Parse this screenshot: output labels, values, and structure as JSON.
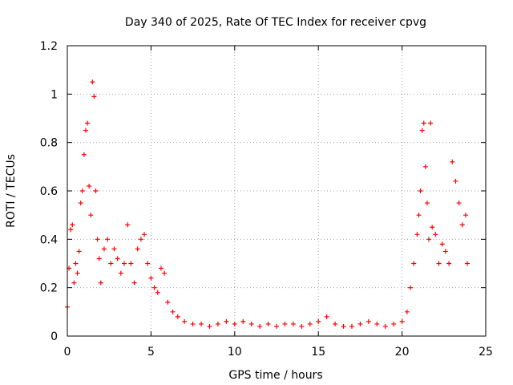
{
  "chart_data": {
    "type": "scatter",
    "title": "Day 340 of 2025, Rate Of TEC Index for receiver cpvg",
    "xlabel": "GPS time / hours",
    "ylabel": "ROTI / TECUs",
    "xlim": [
      0,
      25
    ],
    "ylim": [
      0,
      1.2
    ],
    "xticks": [
      "0",
      "5",
      "10",
      "15",
      "20",
      "25"
    ],
    "yticks": [
      "0",
      "0.2",
      "0.4",
      "0.6",
      "0.8",
      "1",
      "1.2"
    ],
    "grid": true,
    "marker": "+",
    "series": [
      {
        "name": "ROTI",
        "color": "#ff0000",
        "x": [
          0.0,
          0.1,
          0.2,
          0.3,
          0.4,
          0.5,
          0.6,
          0.7,
          0.8,
          0.9,
          1.0,
          1.1,
          1.2,
          1.3,
          1.4,
          1.5,
          1.6,
          1.7,
          1.8,
          1.9,
          2.0,
          2.2,
          2.4,
          2.6,
          2.8,
          3.0,
          3.2,
          3.4,
          3.6,
          3.8,
          4.0,
          4.2,
          4.4,
          4.6,
          4.8,
          5.0,
          5.2,
          5.4,
          5.6,
          5.8,
          6.0,
          6.3,
          6.6,
          7.0,
          7.5,
          8.0,
          8.5,
          9.0,
          9.5,
          10.0,
          10.5,
          11.0,
          11.5,
          12.0,
          12.5,
          13.0,
          13.5,
          14.0,
          14.5,
          15.0,
          15.5,
          16.0,
          16.5,
          17.0,
          17.5,
          18.0,
          18.5,
          19.0,
          19.5,
          20.0,
          20.3,
          20.5,
          20.7,
          20.9,
          21.0,
          21.1,
          21.2,
          21.3,
          21.4,
          21.5,
          21.6,
          21.7,
          21.8,
          22.0,
          22.2,
          22.4,
          22.6,
          22.8,
          23.0,
          23.2,
          23.4,
          23.6,
          23.8,
          23.9
        ],
        "y": [
          0.12,
          0.28,
          0.44,
          0.46,
          0.22,
          0.3,
          0.26,
          0.35,
          0.55,
          0.6,
          0.75,
          0.85,
          0.88,
          0.62,
          0.5,
          1.05,
          0.99,
          0.6,
          0.4,
          0.32,
          0.22,
          0.36,
          0.4,
          0.3,
          0.36,
          0.32,
          0.26,
          0.3,
          0.46,
          0.3,
          0.22,
          0.36,
          0.4,
          0.42,
          0.3,
          0.24,
          0.2,
          0.18,
          0.28,
          0.26,
          0.14,
          0.1,
          0.08,
          0.06,
          0.05,
          0.05,
          0.04,
          0.05,
          0.06,
          0.05,
          0.06,
          0.05,
          0.04,
          0.05,
          0.04,
          0.05,
          0.05,
          0.04,
          0.05,
          0.06,
          0.08,
          0.05,
          0.04,
          0.04,
          0.05,
          0.06,
          0.05,
          0.04,
          0.05,
          0.06,
          0.1,
          0.2,
          0.3,
          0.42,
          0.5,
          0.6,
          0.85,
          0.88,
          0.7,
          0.55,
          0.4,
          0.88,
          0.45,
          0.42,
          0.3,
          0.38,
          0.35,
          0.3,
          0.72,
          0.64,
          0.55,
          0.46,
          0.5,
          0.3
        ]
      }
    ]
  }
}
